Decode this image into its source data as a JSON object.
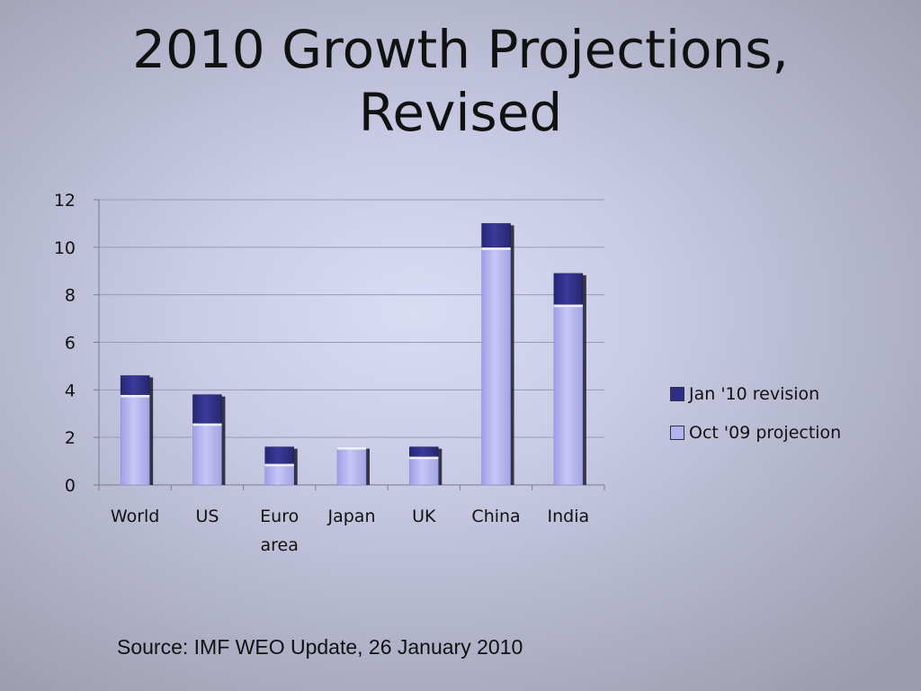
{
  "title_lines": [
    "2010 Growth Projections,",
    "Revised"
  ],
  "source": "Source: IMF WEO Update, 26 January 2010",
  "colors": {
    "revision": "#2e2e86",
    "projection": "#b3b3ee"
  },
  "chart_data": {
    "type": "bar",
    "stacked": true,
    "categories": [
      "World",
      "US",
      "Euro area",
      "Japan",
      "UK",
      "China",
      "India"
    ],
    "series": [
      {
        "name": "Oct '09 projection",
        "values": [
          3.8,
          2.6,
          0.9,
          1.6,
          1.2,
          10.0,
          7.6
        ]
      },
      {
        "name": "Jan '10 revision",
        "values": [
          0.8,
          1.2,
          0.7,
          0.0,
          0.4,
          1.0,
          1.3
        ]
      }
    ],
    "ylim": [
      0,
      12
    ],
    "yticks": [
      "0",
      "2",
      "4",
      "6",
      "8",
      "10",
      "12"
    ],
    "grid": true,
    "legend_position": "right"
  }
}
